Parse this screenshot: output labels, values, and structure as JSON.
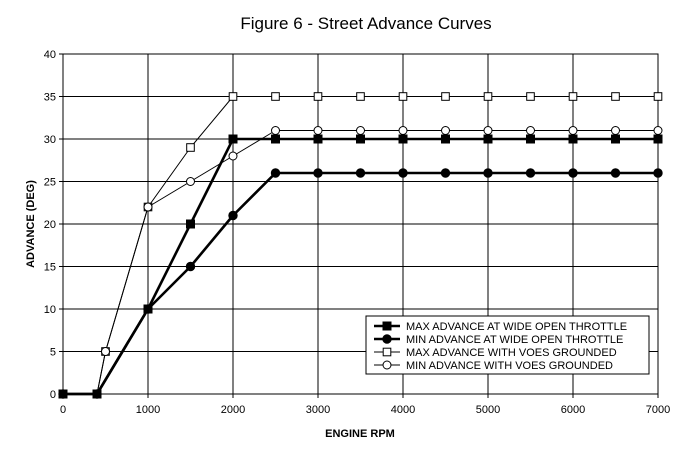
{
  "chart_data": {
    "type": "line",
    "title": "Figure 6 - Street Advance Curves",
    "xlabel": "ENGINE RPM",
    "ylabel": "ADVANCE (DEG)",
    "xlim": [
      0,
      7000
    ],
    "ylim": [
      0,
      40
    ],
    "x_ticks": [
      0,
      1000,
      2000,
      3000,
      4000,
      5000,
      6000,
      7000
    ],
    "y_ticks": [
      0,
      5,
      10,
      15,
      20,
      25,
      30,
      35,
      40
    ],
    "grid": true,
    "legend_position": "bottom-right",
    "series": [
      {
        "name": "MAX ADVANCE AT WIDE OPEN THROTTLE",
        "marker": "filled-square",
        "line": "thick",
        "x": [
          0,
          400,
          1000,
          1500,
          2000,
          2500,
          3000,
          3500,
          4000,
          4500,
          5000,
          5500,
          6000,
          6500,
          7000
        ],
        "y": [
          0,
          0,
          10,
          20,
          30,
          30,
          30,
          30,
          30,
          30,
          30,
          30,
          30,
          30,
          30
        ]
      },
      {
        "name": "MIN ADVANCE AT WIDE OPEN THROTTLE",
        "marker": "filled-circle",
        "line": "thick",
        "x": [
          0,
          400,
          1000,
          1500,
          2000,
          2500,
          3000,
          3500,
          4000,
          4500,
          5000,
          5500,
          6000,
          6500,
          7000
        ],
        "y": [
          0,
          0,
          10,
          15,
          21,
          26,
          26,
          26,
          26,
          26,
          26,
          26,
          26,
          26,
          26
        ]
      },
      {
        "name": "MAX ADVANCE WITH VOES GROUNDED",
        "marker": "open-square",
        "line": "thin",
        "x": [
          0,
          400,
          500,
          1000,
          1500,
          2000,
          2500,
          3000,
          3500,
          4000,
          4500,
          5000,
          5500,
          6000,
          6500,
          7000
        ],
        "y": [
          0,
          0,
          5,
          22,
          29,
          35,
          35,
          35,
          35,
          35,
          35,
          35,
          35,
          35,
          35,
          35
        ]
      },
      {
        "name": "MIN ADVANCE WITH VOES GROUNDED",
        "marker": "open-circle",
        "line": "thin",
        "x": [
          0,
          400,
          500,
          1000,
          1500,
          2000,
          2500,
          3000,
          3500,
          4000,
          4500,
          5000,
          5500,
          6000,
          6500,
          7000
        ],
        "y": [
          0,
          0,
          5,
          22,
          25,
          28,
          31,
          31,
          31,
          31,
          31,
          31,
          31,
          31,
          31,
          31
        ]
      }
    ]
  }
}
